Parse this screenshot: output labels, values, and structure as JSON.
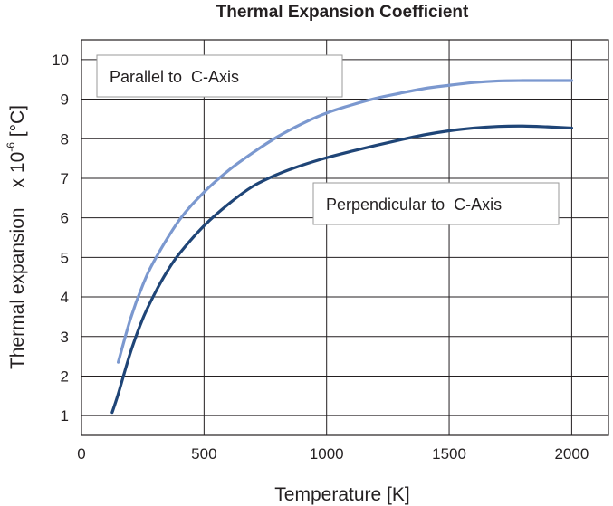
{
  "chart_data": {
    "type": "line",
    "title": "Thermal Expansion Coefficient",
    "xlabel": "Temperature [K]",
    "ylabel_main": "Thermal expansion",
    "ylabel_unit_prefix": "x 10",
    "ylabel_unit_exponent": "-6",
    "ylabel_unit_suffix": " [°C]",
    "xlim": [
      0,
      2150
    ],
    "ylim": [
      0.5,
      10.5
    ],
    "x_ticks": [
      0,
      500,
      1000,
      1500,
      2000
    ],
    "y_ticks": [
      1,
      2,
      3,
      4,
      5,
      6,
      7,
      8,
      9,
      10
    ],
    "grid": true,
    "series": [
      {
        "name": "Parallel to  C-Axis",
        "color": "#7b98cf",
        "x": [
          150,
          200,
          250,
          300,
          400,
          500,
          600,
          700,
          800,
          900,
          1000,
          1100,
          1200,
          1300,
          1400,
          1500,
          1600,
          1700,
          1800,
          1900,
          2000
        ],
        "y": [
          2.35,
          3.45,
          4.3,
          4.95,
          5.95,
          6.65,
          7.2,
          7.65,
          8.05,
          8.38,
          8.65,
          8.85,
          9.02,
          9.15,
          9.27,
          9.35,
          9.42,
          9.46,
          9.47,
          9.47,
          9.47
        ]
      },
      {
        "name": "Perpendicular to  C-Axis",
        "color": "#1f4577",
        "x": [
          125,
          150,
          200,
          250,
          300,
          350,
          400,
          500,
          600,
          700,
          800,
          900,
          1000,
          1100,
          1200,
          1300,
          1400,
          1500,
          1600,
          1700,
          1800,
          1900,
          2000
        ],
        "y": [
          1.08,
          1.55,
          2.6,
          3.45,
          4.1,
          4.65,
          5.1,
          5.8,
          6.35,
          6.8,
          7.1,
          7.33,
          7.52,
          7.68,
          7.83,
          7.97,
          8.1,
          8.2,
          8.27,
          8.31,
          8.32,
          8.3,
          8.27
        ]
      }
    ]
  }
}
